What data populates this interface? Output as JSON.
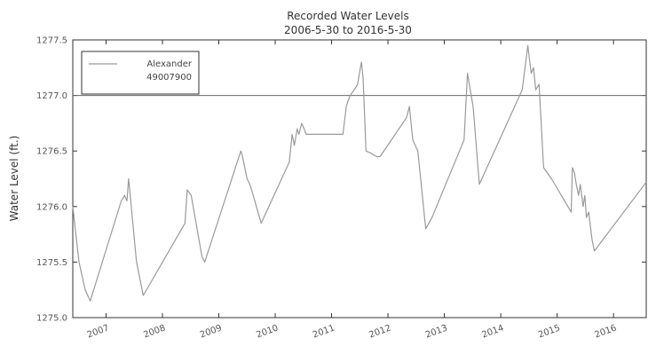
{
  "chart_data": {
    "type": "line",
    "title": "Recorded Water Levels",
    "subtitle": "2006-5-30 to 2016-5-30",
    "xlabel": "",
    "ylabel": "Water Level (ft.)",
    "xlim": [
      2006.41,
      2016.58
    ],
    "ylim": [
      1275.0,
      1277.5
    ],
    "x_ticks": [
      "2007",
      "2008",
      "2009",
      "2010",
      "2011",
      "2012",
      "2013",
      "2014",
      "2015",
      "2016"
    ],
    "y_ticks": [
      "1275.0",
      "1275.5",
      "1276.0",
      "1276.5",
      "1277.0",
      "1277.5"
    ],
    "grid": false,
    "legend_position": "top-left",
    "reference_line": {
      "y": 1277.0,
      "color": "#666666"
    },
    "series": [
      {
        "name": "Alexander\n49007900",
        "legend_lines": [
          "Alexander",
          "49007900"
        ],
        "color": "#9a9a9a",
        "x": [
          2006.41,
          2006.52,
          2006.63,
          2006.72,
          2007.27,
          2007.33,
          2007.37,
          2007.4,
          2007.54,
          2007.66,
          2008.4,
          2008.44,
          2008.51,
          2008.7,
          2008.75,
          2009.39,
          2009.42,
          2009.5,
          2009.55,
          2009.61,
          2009.75,
          2010.25,
          2010.3,
          2010.34,
          2010.39,
          2010.42,
          2010.47,
          2010.55,
          2011.17,
          2011.2,
          2011.26,
          2011.29,
          2011.33,
          2011.4,
          2011.46,
          2011.51,
          2011.53,
          2011.56,
          2011.61,
          2011.7,
          2011.76,
          2011.8,
          2011.86,
          2012.33,
          2012.38,
          2012.44,
          2012.53,
          2012.67,
          2012.78,
          2013.35,
          2013.41,
          2013.51,
          2013.62,
          2014.38,
          2014.48,
          2014.54,
          2014.58,
          2014.62,
          2014.68,
          2014.76,
          2014.9,
          2015.25,
          2015.27,
          2015.31,
          2015.34,
          2015.38,
          2015.41,
          2015.46,
          2015.49,
          2015.52,
          2015.56,
          2015.62,
          2015.66,
          2016.58
        ],
        "values": [
          1276.0,
          1275.5,
          1275.25,
          1275.15,
          1276.05,
          1276.1,
          1276.05,
          1276.25,
          1275.5,
          1275.2,
          1275.85,
          1276.15,
          1276.1,
          1275.55,
          1275.5,
          1276.5,
          1276.45,
          1276.25,
          1276.2,
          1276.1,
          1275.85,
          1276.4,
          1276.65,
          1276.55,
          1276.7,
          1276.65,
          1276.75,
          1276.65,
          1276.65,
          1276.65,
          1276.9,
          1276.95,
          1277.0,
          1277.05,
          1277.1,
          1277.25,
          1277.3,
          1277.15,
          1276.5,
          1276.48,
          1276.46,
          1276.45,
          1276.45,
          1276.8,
          1276.9,
          1276.6,
          1276.5,
          1275.8,
          1275.9,
          1276.6,
          1277.2,
          1276.9,
          1276.2,
          1277.05,
          1277.45,
          1277.2,
          1277.25,
          1277.05,
          1277.1,
          1276.35,
          1276.25,
          1275.95,
          1276.35,
          1276.3,
          1276.2,
          1276.1,
          1276.2,
          1276.0,
          1276.1,
          1275.9,
          1275.95,
          1275.7,
          1275.6,
          1276.22
        ]
      }
    ]
  }
}
